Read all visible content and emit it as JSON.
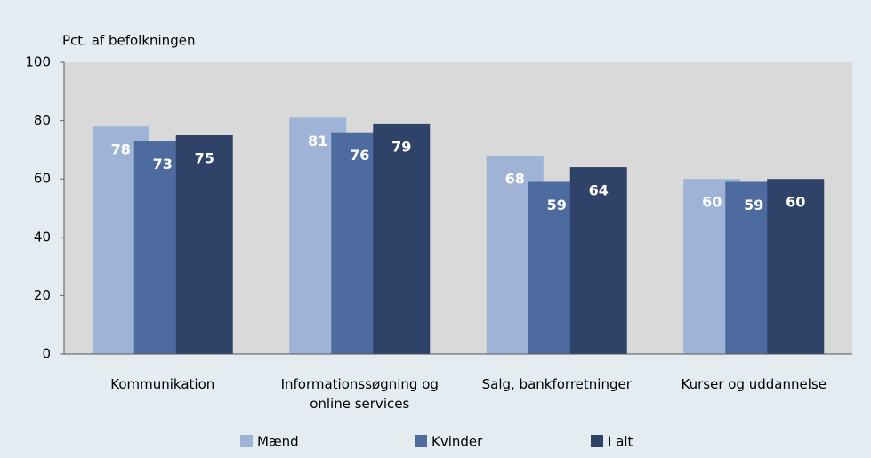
{
  "chart_data": {
    "type": "bar",
    "y_label": "Pct. af befolkningen",
    "categories": [
      "Kommunikation",
      "Informationssøgning og online services",
      "Salg, bankforretninger",
      "Kurser og uddannelse"
    ],
    "series": [
      {
        "name": "Mænd",
        "color": "#9fb3d6",
        "values": [
          78,
          81,
          68,
          60
        ]
      },
      {
        "name": "Kvinder",
        "color": "#4e6ba0",
        "values": [
          73,
          76,
          59,
          59
        ]
      },
      {
        "name": "I alt",
        "color": "#2f4368",
        "values": [
          75,
          79,
          64,
          60
        ]
      }
    ],
    "ylim": [
      0,
      100
    ],
    "yticks": [
      0,
      20,
      40,
      60,
      80,
      100
    ],
    "grid": false
  }
}
